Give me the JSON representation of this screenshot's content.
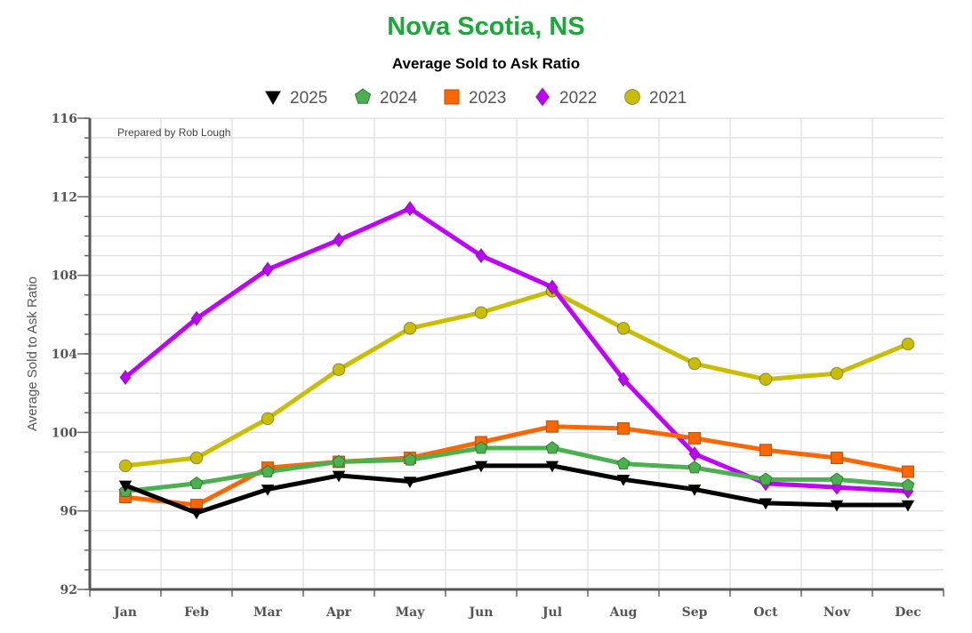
{
  "chart_data": {
    "type": "line",
    "title": "Nova Scotia, NS",
    "subtitle": "Average Sold to Ask Ratio",
    "ylabel": "Average Sold to Ask Ratio",
    "annotation": "Prepared by Rob Lough",
    "categories": [
      "Jan",
      "Feb",
      "Mar",
      "Apr",
      "May",
      "Jun",
      "Jul",
      "Aug",
      "Sep",
      "Oct",
      "Nov",
      "Dec"
    ],
    "ylim": [
      92,
      116
    ],
    "yticks": [
      92,
      96,
      100,
      104,
      108,
      112,
      116
    ],
    "grid": true,
    "legend_position": "top",
    "series": [
      {
        "name": "2025",
        "color": "#000000",
        "marker": "triangle-down",
        "values": [
          97.3,
          95.9,
          97.1,
          97.8,
          97.5,
          98.3,
          98.3,
          97.6,
          97.1,
          96.4,
          96.3,
          96.3
        ]
      },
      {
        "name": "2024",
        "color": "#4caf50",
        "marker": "pentagon",
        "values": [
          97.0,
          97.4,
          98.0,
          98.5,
          98.6,
          99.2,
          99.2,
          98.4,
          98.2,
          97.6,
          97.6,
          97.3
        ]
      },
      {
        "name": "2023",
        "color": "#ff6600",
        "marker": "square",
        "values": [
          96.7,
          96.3,
          98.2,
          98.5,
          98.7,
          99.5,
          100.3,
          100.2,
          99.7,
          99.1,
          98.7,
          98.0
        ]
      },
      {
        "name": "2022",
        "color": "#bf00ff",
        "marker": "diamond",
        "values": [
          102.8,
          105.8,
          108.3,
          109.8,
          111.4,
          109.0,
          107.4,
          102.7,
          98.9,
          97.4,
          97.2,
          97.0
        ]
      },
      {
        "name": "2021",
        "color": "#c8bd00",
        "marker": "circle",
        "values": [
          98.3,
          98.7,
          100.7,
          103.2,
          105.3,
          106.1,
          107.2,
          105.3,
          103.5,
          102.7,
          103.0,
          104.5
        ]
      }
    ]
  }
}
